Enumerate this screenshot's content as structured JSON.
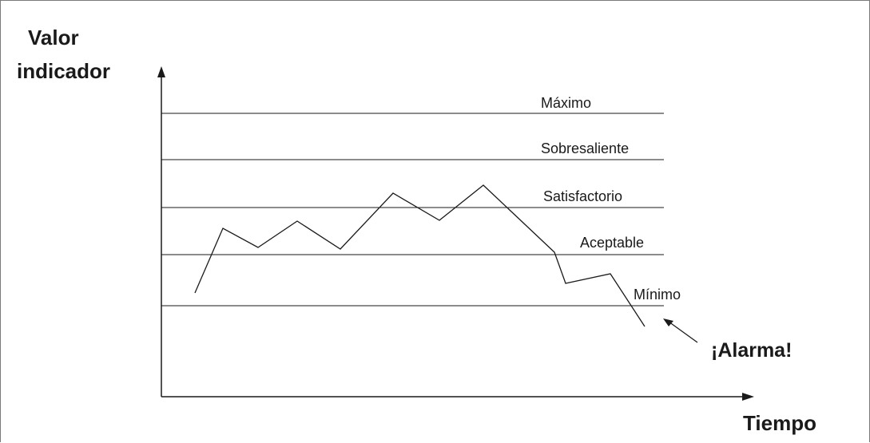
{
  "diagram": {
    "y_axis_title_line1": "Valor",
    "y_axis_title_line2": "indicador",
    "x_axis_title": "Tiempo",
    "alarm_label": "¡Alarma!",
    "levels": [
      {
        "label": "Máximo"
      },
      {
        "label": "Sobresaliente"
      },
      {
        "label": "Satisfactorio"
      },
      {
        "label": "Aceptable"
      },
      {
        "label": "Mínimo"
      }
    ],
    "line_color": "#1a1a1a"
  }
}
